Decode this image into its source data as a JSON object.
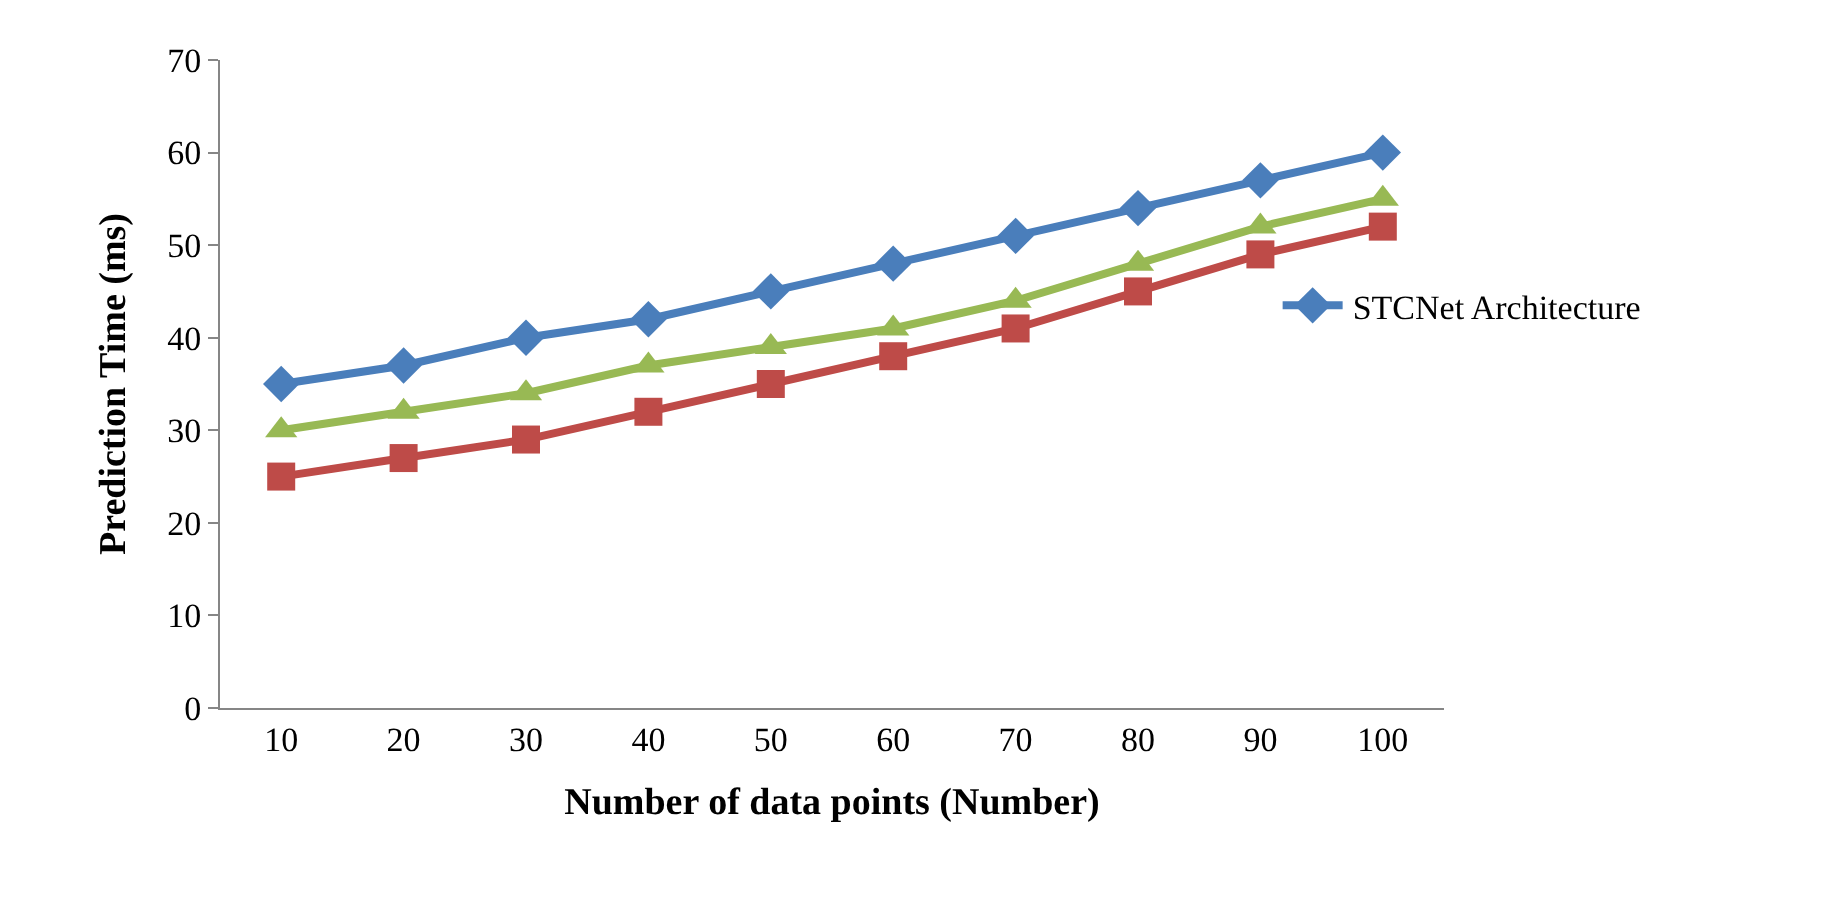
{
  "chart_data": {
    "type": "line",
    "xlabel": "Number of data points (Number)",
    "ylabel": "Prediction Time (ms)",
    "categories": [
      "10",
      "20",
      "30",
      "40",
      "50",
      "60",
      "70",
      "80",
      "90",
      "100"
    ],
    "series": [
      {
        "name": "STCNet Architecture",
        "color": "#4a7ebb",
        "marker": "diamond",
        "values": [
          35,
          37,
          40,
          42,
          45,
          48,
          51,
          54,
          57,
          60
        ]
      },
      {
        "color": "#be4b48",
        "marker": "square",
        "values": [
          25,
          27,
          29,
          32,
          35,
          38,
          41,
          45,
          49,
          52
        ]
      },
      {
        "color": "#98b954",
        "marker": "triangle",
        "values": [
          30,
          32,
          34,
          37,
          39,
          41,
          44,
          48,
          52,
          55
        ]
      }
    ],
    "ylim": [
      0,
      70
    ],
    "yticks": [
      0,
      10,
      20,
      30,
      40,
      50,
      60,
      70
    ],
    "legend": "right",
    "line_style": "solid"
  }
}
